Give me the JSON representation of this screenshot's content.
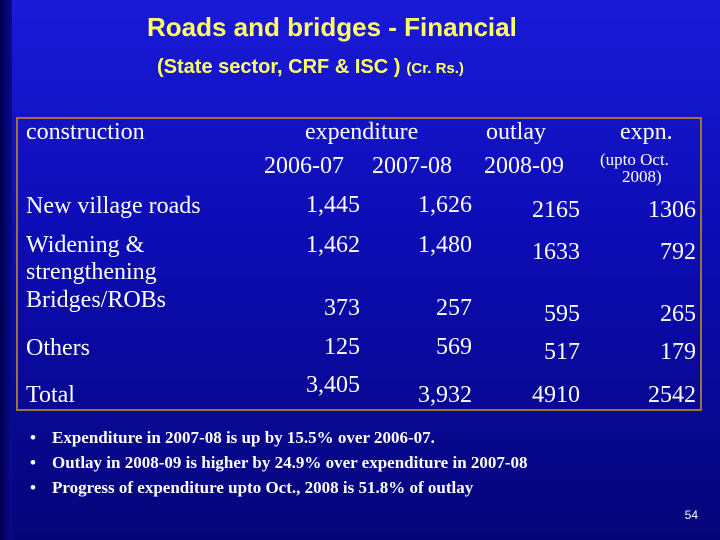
{
  "title": {
    "line1": "Roads and bridges -   Financial",
    "line2": "(State sector, CRF & ISC )",
    "unit": "(Cr. Rs.)"
  },
  "table": {
    "headers": {
      "item": "construction",
      "expenditure": "expenditure",
      "outlay": "outlay",
      "expn": "expn.",
      "y1": "2006-07",
      "y2": "2007-08",
      "y3": "2008-09",
      "upto": "(upto   Oct.",
      "upto_year": "2008)"
    },
    "rows": [
      {
        "item": "New village roads",
        "v1": "1,445",
        "v2": "1,626",
        "v3": "2165",
        "v4": "1306"
      },
      {
        "item_line1": "Widening &",
        "item_line2": "strengthening",
        "v1": "1,462",
        "v2": "1,480",
        "v3": "1633",
        "v4": "792"
      },
      {
        "item": "Bridges/ROBs",
        "v1": "373",
        "v2": "257",
        "v3": "595",
        "v4": "265"
      },
      {
        "item": "Others",
        "v1": "125",
        "v2": "569",
        "v3": "517",
        "v4": "179"
      },
      {
        "item": "Total",
        "v1": "3,405",
        "v2": "3,932",
        "v3": "4910",
        "v4": "2542"
      }
    ]
  },
  "bullets": {
    "symbol": "•",
    "items": [
      "Expenditure in 2007-08 is up by 15.5% over 2006-07.",
      "Outlay in 2008-09 is higher by 24.9% over expenditure in 2007-08",
      "Progress of expenditure upto Oct., 2008 is 51.8% of outlay"
    ]
  },
  "page_number": "54",
  "colors": {
    "background": "#0c0cb4",
    "title": "#ffff66",
    "table_border": "#a0723a",
    "text": "#ffffff"
  }
}
